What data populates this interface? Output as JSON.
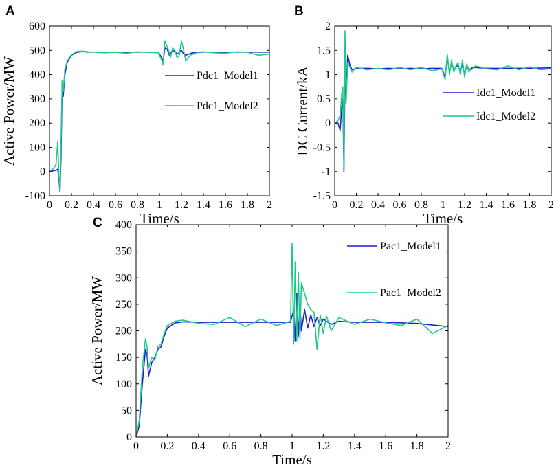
{
  "chart_data": [
    {
      "type": "line",
      "panel": "A",
      "title": "",
      "xlabel": "Time/s",
      "ylabel": "Active Power/MW",
      "xlim": [
        0,
        2
      ],
      "ylim": [
        -100,
        600
      ],
      "xticks": [
        "0",
        "0.2",
        "0.4",
        "0.6",
        "0.8",
        "1",
        "1.2",
        "1.4",
        "1.6",
        "1.8",
        "2"
      ],
      "yticks": [
        "-100",
        "0",
        "100",
        "200",
        "300",
        "400",
        "500",
        "600"
      ],
      "grid": false,
      "legend_position": "right",
      "series": [
        {
          "name": "Pdc1_Model1",
          "color": "#1f1fd6",
          "points": [
            [
              0,
              0
            ],
            [
              0.06,
              5
            ],
            [
              0.075,
              10
            ],
            [
              0.085,
              -30
            ],
            [
              0.095,
              -85
            ],
            [
              0.105,
              60
            ],
            [
              0.115,
              330
            ],
            [
              0.125,
              310
            ],
            [
              0.14,
              400
            ],
            [
              0.16,
              450
            ],
            [
              0.2,
              480
            ],
            [
              0.25,
              492
            ],
            [
              0.3,
              495
            ],
            [
              0.35,
              493
            ],
            [
              0.4,
              493
            ],
            [
              0.5,
              493
            ],
            [
              0.6,
              493
            ],
            [
              0.7,
              493
            ],
            [
              0.8,
              493
            ],
            [
              0.9,
              493
            ],
            [
              0.99,
              493
            ],
            [
              1.02,
              470
            ],
            [
              1.03,
              450
            ],
            [
              1.05,
              510
            ],
            [
              1.07,
              505
            ],
            [
              1.09,
              480
            ],
            [
              1.1,
              490
            ],
            [
              1.12,
              500
            ],
            [
              1.14,
              495
            ],
            [
              1.16,
              485
            ],
            [
              1.18,
              490
            ],
            [
              1.2,
              500
            ],
            [
              1.22,
              485
            ],
            [
              1.24,
              480
            ],
            [
              1.3,
              490
            ],
            [
              1.4,
              493
            ],
            [
              1.6,
              493
            ],
            [
              1.8,
              493
            ],
            [
              2.0,
              493
            ]
          ]
        },
        {
          "name": "Pdc1_Model2",
          "color": "#1ec98a",
          "points": [
            [
              0,
              0
            ],
            [
              0.04,
              15
            ],
            [
              0.06,
              30
            ],
            [
              0.075,
              125
            ],
            [
              0.085,
              -10
            ],
            [
              0.095,
              -80
            ],
            [
              0.105,
              120
            ],
            [
              0.115,
              375
            ],
            [
              0.125,
              330
            ],
            [
              0.14,
              420
            ],
            [
              0.16,
              455
            ],
            [
              0.2,
              482
            ],
            [
              0.25,
              495
            ],
            [
              0.3,
              497
            ],
            [
              0.35,
              494
            ],
            [
              0.4,
              493
            ],
            [
              0.5,
              490
            ],
            [
              0.6,
              492
            ],
            [
              0.7,
              488
            ],
            [
              0.8,
              494
            ],
            [
              0.9,
              492
            ],
            [
              0.99,
              490
            ],
            [
              1.02,
              460
            ],
            [
              1.03,
              440
            ],
            [
              1.05,
              540
            ],
            [
              1.07,
              515
            ],
            [
              1.09,
              490
            ],
            [
              1.1,
              470
            ],
            [
              1.12,
              510
            ],
            [
              1.14,
              500
            ],
            [
              1.16,
              470
            ],
            [
              1.18,
              480
            ],
            [
              1.2,
              540
            ],
            [
              1.22,
              500
            ],
            [
              1.24,
              455
            ],
            [
              1.28,
              480
            ],
            [
              1.35,
              492
            ],
            [
              1.4,
              494
            ],
            [
              1.5,
              490
            ],
            [
              1.6,
              488
            ],
            [
              1.7,
              494
            ],
            [
              1.8,
              492
            ],
            [
              1.9,
              480
            ],
            [
              2.0,
              485
            ]
          ]
        }
      ]
    },
    {
      "type": "line",
      "panel": "B",
      "title": "",
      "xlabel": "Time/s",
      "ylabel": "DC Current/kA",
      "xlim": [
        0,
        2
      ],
      "ylim": [
        -1.5,
        2
      ],
      "xticks": [
        "0",
        "0.2",
        "0.4",
        "0.6",
        "0.8",
        "1",
        "1.2",
        "1.4",
        "1.6",
        "1.8",
        "2"
      ],
      "yticks": [
        "-1.5",
        "-1",
        "-0.5",
        "0",
        "0.5",
        "1",
        "1.5",
        "2"
      ],
      "grid": false,
      "legend_position": "right",
      "series": [
        {
          "name": "Idc1_Model1",
          "color": "#1f1fd6",
          "points": [
            [
              0,
              0
            ],
            [
              0.03,
              0.0
            ],
            [
              0.05,
              -0.15
            ],
            [
              0.065,
              0.3
            ],
            [
              0.075,
              0.5
            ],
            [
              0.085,
              -1.0
            ],
            [
              0.095,
              1.1
            ],
            [
              0.105,
              0.6
            ],
            [
              0.12,
              1.4
            ],
            [
              0.14,
              1.2
            ],
            [
              0.16,
              1.1
            ],
            [
              0.2,
              1.13
            ],
            [
              0.3,
              1.13
            ],
            [
              0.4,
              1.12
            ],
            [
              0.5,
              1.13
            ],
            [
              0.6,
              1.12
            ],
            [
              0.7,
              1.13
            ],
            [
              0.8,
              1.12
            ],
            [
              0.9,
              1.13
            ],
            [
              0.99,
              1.13
            ],
            [
              1.02,
              0.95
            ],
            [
              1.04,
              1.35
            ],
            [
              1.06,
              1.05
            ],
            [
              1.08,
              1.25
            ],
            [
              1.1,
              1.1
            ],
            [
              1.12,
              1.15
            ],
            [
              1.14,
              1.2
            ],
            [
              1.16,
              1.05
            ],
            [
              1.18,
              1.2
            ],
            [
              1.2,
              1.0
            ],
            [
              1.22,
              1.2
            ],
            [
              1.24,
              1.1
            ],
            [
              1.28,
              1.15
            ],
            [
              1.4,
              1.13
            ],
            [
              1.6,
              1.13
            ],
            [
              1.8,
              1.13
            ],
            [
              2.0,
              1.14
            ]
          ]
        },
        {
          "name": "Idc1_Model2",
          "color": "#1ec98a",
          "points": [
            [
              0,
              0
            ],
            [
              0.03,
              0.05
            ],
            [
              0.05,
              0.15
            ],
            [
              0.065,
              0.6
            ],
            [
              0.075,
              0.75
            ],
            [
              0.085,
              -0.9
            ],
            [
              0.095,
              1.9
            ],
            [
              0.105,
              0.4
            ],
            [
              0.12,
              1.25
            ],
            [
              0.14,
              1.15
            ],
            [
              0.16,
              1.05
            ],
            [
              0.2,
              1.15
            ],
            [
              0.3,
              1.1
            ],
            [
              0.4,
              1.13
            ],
            [
              0.5,
              1.1
            ],
            [
              0.6,
              1.15
            ],
            [
              0.7,
              1.1
            ],
            [
              0.8,
              1.15
            ],
            [
              0.9,
              1.08
            ],
            [
              0.99,
              1.12
            ],
            [
              1.02,
              0.9
            ],
            [
              1.04,
              1.42
            ],
            [
              1.06,
              1.0
            ],
            [
              1.08,
              1.3
            ],
            [
              1.1,
              1.05
            ],
            [
              1.12,
              1.18
            ],
            [
              1.14,
              1.25
            ],
            [
              1.16,
              1.0
            ],
            [
              1.18,
              1.3
            ],
            [
              1.2,
              0.95
            ],
            [
              1.22,
              1.22
            ],
            [
              1.24,
              1.05
            ],
            [
              1.3,
              1.18
            ],
            [
              1.4,
              1.12
            ],
            [
              1.5,
              1.1
            ],
            [
              1.6,
              1.18
            ],
            [
              1.7,
              1.1
            ],
            [
              1.8,
              1.16
            ],
            [
              1.9,
              1.1
            ],
            [
              2.0,
              1.12
            ]
          ]
        }
      ]
    },
    {
      "type": "line",
      "panel": "C",
      "title": "",
      "xlabel": "Time/s",
      "ylabel": "Active Power/MW",
      "xlim": [
        0,
        2
      ],
      "ylim": [
        0,
        400
      ],
      "xticks": [
        "0",
        "0.2",
        "0.4",
        "0.6",
        "0.8",
        "1",
        "1.2",
        "1.4",
        "1.6",
        "1.8",
        "2"
      ],
      "yticks": [
        "0",
        "50",
        "100",
        "150",
        "200",
        "250",
        "300",
        "350",
        "400"
      ],
      "grid": false,
      "legend_position": "top-right",
      "series": [
        {
          "name": "Pac1_Model1",
          "color": "#1f1fd6",
          "points": [
            [
              0,
              0
            ],
            [
              0.02,
              20
            ],
            [
              0.04,
              100
            ],
            [
              0.06,
              165
            ],
            [
              0.07,
              155
            ],
            [
              0.08,
              115
            ],
            [
              0.1,
              140
            ],
            [
              0.12,
              150
            ],
            [
              0.14,
              165
            ],
            [
              0.16,
              170
            ],
            [
              0.18,
              190
            ],
            [
              0.2,
              205
            ],
            [
              0.25,
              215
            ],
            [
              0.3,
              217
            ],
            [
              0.4,
              216
            ],
            [
              0.5,
              216
            ],
            [
              0.6,
              216
            ],
            [
              0.7,
              216
            ],
            [
              0.8,
              216
            ],
            [
              0.9,
              216
            ],
            [
              0.99,
              216
            ],
            [
              1.01,
              240
            ],
            [
              1.02,
              180
            ],
            [
              1.03,
              270
            ],
            [
              1.04,
              190
            ],
            [
              1.05,
              250
            ],
            [
              1.06,
              200
            ],
            [
              1.08,
              240
            ],
            [
              1.1,
              205
            ],
            [
              1.12,
              230
            ],
            [
              1.14,
              208
            ],
            [
              1.16,
              225
            ],
            [
              1.18,
              210
            ],
            [
              1.2,
              222
            ],
            [
              1.25,
              212
            ],
            [
              1.3,
              218
            ],
            [
              1.4,
              216
            ],
            [
              1.6,
              216
            ],
            [
              1.8,
              214
            ],
            [
              2.0,
              208
            ]
          ]
        },
        {
          "name": "Pac1_Model2",
          "color": "#1ec98a",
          "points": [
            [
              0,
              0
            ],
            [
              0.02,
              30
            ],
            [
              0.04,
              130
            ],
            [
              0.06,
              185
            ],
            [
              0.07,
              170
            ],
            [
              0.08,
              130
            ],
            [
              0.1,
              150
            ],
            [
              0.12,
              145
            ],
            [
              0.14,
              170
            ],
            [
              0.16,
              175
            ],
            [
              0.18,
              195
            ],
            [
              0.2,
              210
            ],
            [
              0.25,
              218
            ],
            [
              0.3,
              220
            ],
            [
              0.4,
              214
            ],
            [
              0.5,
              212
            ],
            [
              0.6,
              225
            ],
            [
              0.7,
              208
            ],
            [
              0.8,
              222
            ],
            [
              0.9,
              210
            ],
            [
              0.99,
              218
            ],
            [
              1.0,
              365
            ],
            [
              1.01,
              175
            ],
            [
              1.02,
              330
            ],
            [
              1.03,
              180
            ],
            [
              1.04,
              310
            ],
            [
              1.05,
              185
            ],
            [
              1.06,
              290
            ],
            [
              1.08,
              270
            ],
            [
              1.1,
              250
            ],
            [
              1.12,
              240
            ],
            [
              1.14,
              235
            ],
            [
              1.16,
              165
            ],
            [
              1.18,
              230
            ],
            [
              1.2,
              195
            ],
            [
              1.22,
              228
            ],
            [
              1.25,
              200
            ],
            [
              1.3,
              225
            ],
            [
              1.4,
              212
            ],
            [
              1.5,
              222
            ],
            [
              1.6,
              215
            ],
            [
              1.7,
              210
            ],
            [
              1.8,
              222
            ],
            [
              1.9,
              195
            ],
            [
              2.0,
              210
            ]
          ]
        }
      ]
    }
  ]
}
